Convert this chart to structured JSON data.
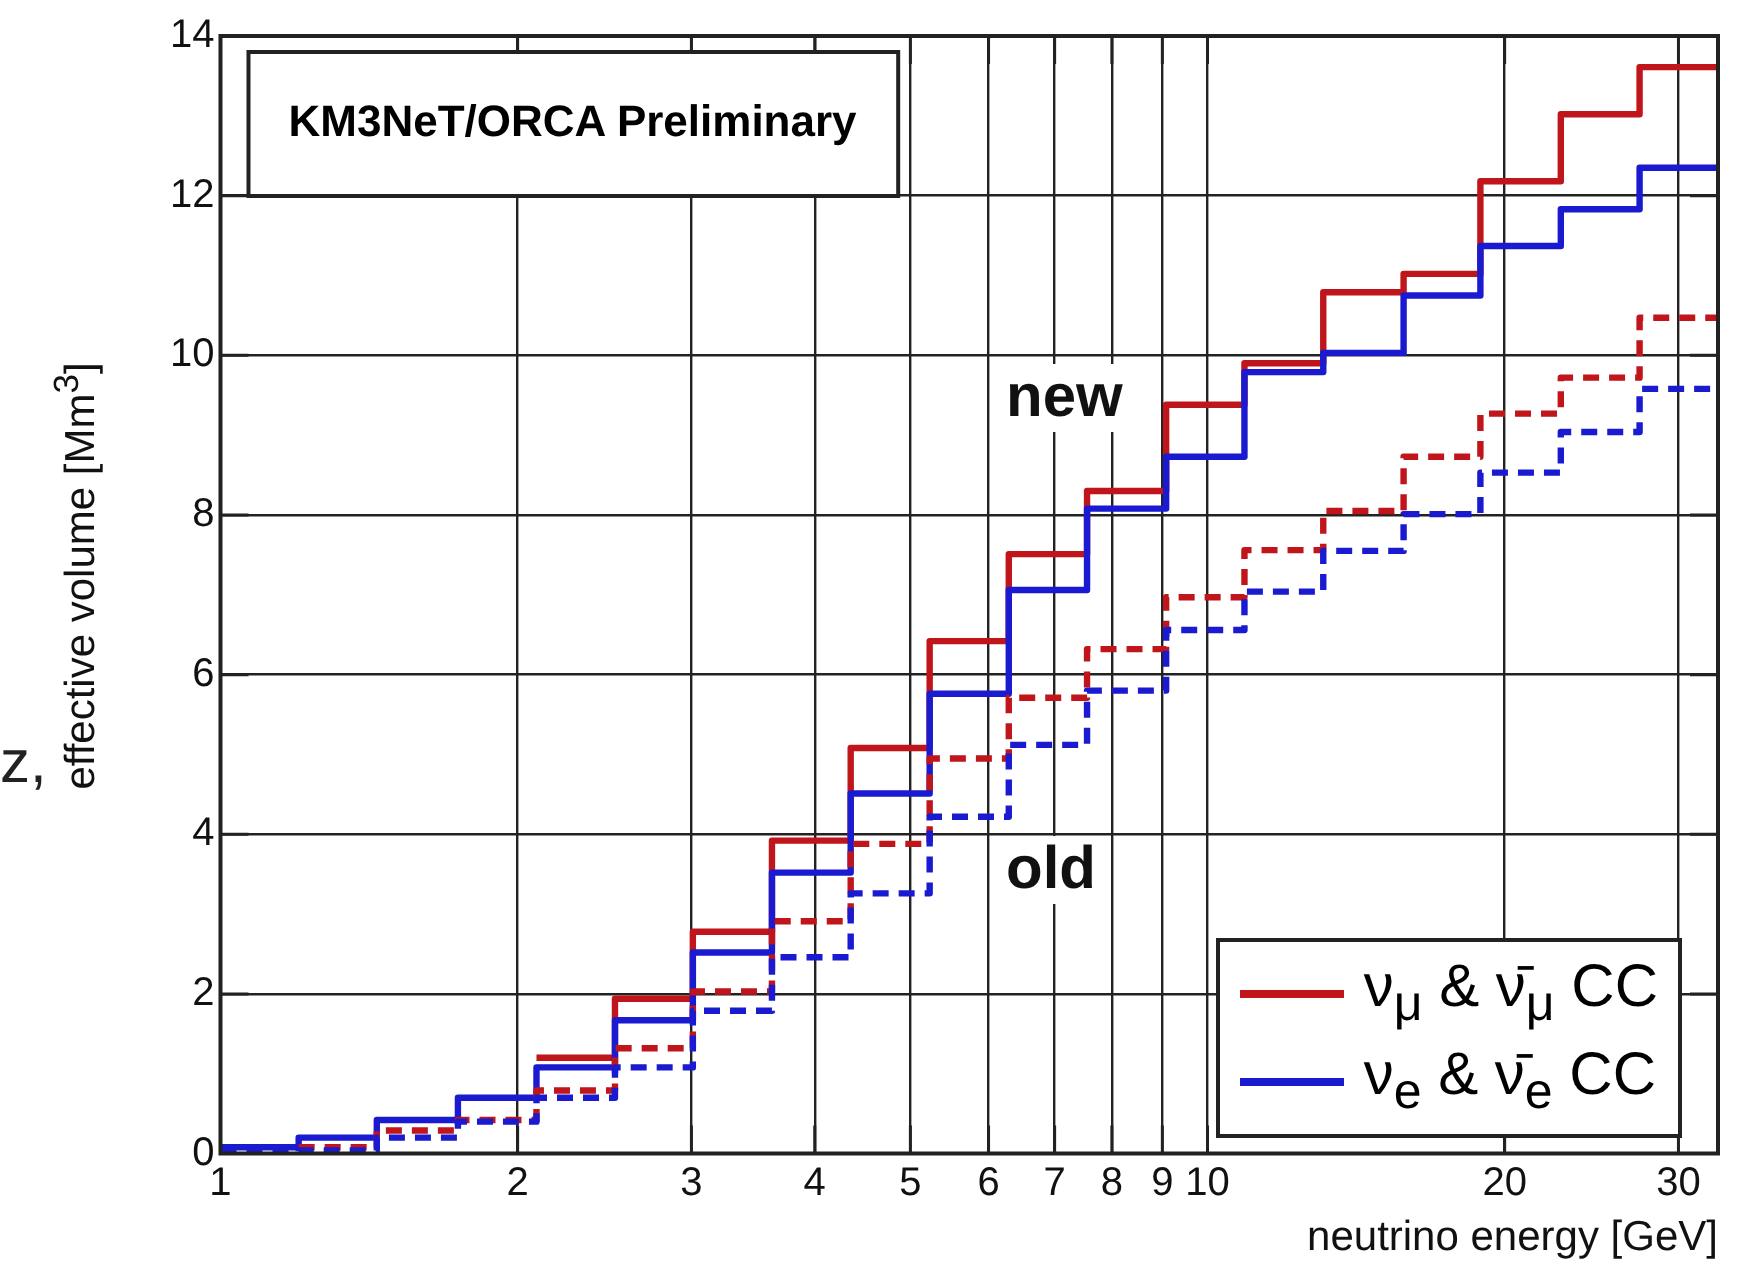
{
  "chart_data": {
    "type": "step",
    "title": "KM3NeT/ORCA Preliminary",
    "xlabel": "neutrino energy [GeV]",
    "ylabel": "effective volume [Mm$^{3}$]",
    "x": [
      1,
      1.2,
      1.44,
      1.74,
      2.09,
      2.51,
      3.01,
      3.62,
      4.35,
      5.23,
      6.29,
      7.55,
      9.08,
      10.9,
      13.1,
      15.8,
      18.9,
      22.8,
      27.4,
      32.9
    ],
    "series": [
      {
        "name": "ν$_{μ}$ & ν̄$_{μ}$ CC",
        "color": "#c0151b",
        "line_style": "solid",
        "values": [
          null,
          null,
          null,
          null,
          1.2,
          1.94,
          2.78,
          3.92,
          5.08,
          6.42,
          7.51,
          8.3,
          9.38,
          9.9,
          10.79,
          11.02,
          12.18,
          13.02,
          13.61,
          13.61
        ]
      },
      {
        "name": "ν$_{e}$ & ν̄$_{e}$ CC",
        "color": "#1a1ad0",
        "line_style": "solid",
        "values": [
          0.08,
          0.2,
          0.42,
          0.7,
          1.08,
          1.67,
          2.52,
          3.52,
          4.51,
          5.76,
          7.06,
          8.08,
          8.73,
          9.79,
          10.03,
          10.75,
          11.37,
          11.83,
          12.35,
          12.35
        ]
      },
      {
        "color": "#c0151b",
        "line_style": "dashed",
        "values": [
          null,
          0.08,
          0.29,
          0.42,
          0.79,
          1.32,
          2.03,
          2.91,
          3.88,
          4.95,
          5.71,
          6.32,
          6.97,
          7.56,
          8.05,
          8.73,
          9.27,
          9.72,
          10.47,
          10.47
        ]
      },
      {
        "color": "#1a1ad0",
        "line_style": "dashed",
        "values": [
          0.03,
          0.04,
          0.2,
          0.4,
          0.7,
          1.08,
          1.79,
          2.46,
          3.26,
          4.22,
          5.12,
          5.8,
          6.56,
          7.04,
          7.55,
          8.01,
          8.53,
          9.04,
          9.58,
          9.58
        ]
      }
    ],
    "xlim": [
      1,
      32.9
    ],
    "xticks": [
      1,
      2,
      3,
      4,
      5,
      6,
      7,
      8,
      9,
      10,
      20,
      30
    ],
    "log": "x",
    "ylim": [
      0,
      14
    ],
    "yticks": [
      0,
      2,
      4,
      6,
      8,
      10,
      12,
      14
    ],
    "grid": true,
    "legend": "bottom right",
    "marker": "none",
    "annotations": [
      "new",
      "old",
      "z,"
    ]
  }
}
